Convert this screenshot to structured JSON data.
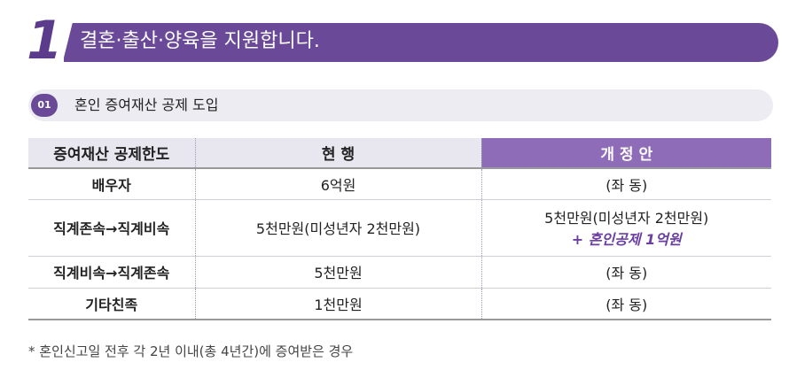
{
  "banner": {
    "number": "1",
    "title": "결혼·출산·양육을 지원합니다."
  },
  "subhead": {
    "badge": "01",
    "title": "혼인 증여재산 공제 도입"
  },
  "table": {
    "headers": [
      "증여재산 공제한도",
      "현 행",
      "개 정 안"
    ],
    "rows": [
      {
        "category": "배우자",
        "current": "6억원",
        "proposed": "(좌 동)",
        "proposed_extra": ""
      },
      {
        "category": "직계존속→직계비속",
        "current": "5천만원(미성년자 2천만원)",
        "proposed": "5천만원(미성년자 2천만원)",
        "proposed_extra": "+ 혼인공제 1억원"
      },
      {
        "category": "직계비속→직계존속",
        "current": "5천만원",
        "proposed": "(좌 동)",
        "proposed_extra": ""
      },
      {
        "category": "기타친족",
        "current": "1천만원",
        "proposed": "(좌 동)",
        "proposed_extra": ""
      }
    ]
  },
  "footnote": "* 혼인신고일 전후 각 2년 이내(총 4년간)에 증여받은 경우",
  "colors": {
    "accent": "#6a4a98",
    "header_highlight": "#8f6cb8",
    "emphasis": "#6a3fa0"
  }
}
